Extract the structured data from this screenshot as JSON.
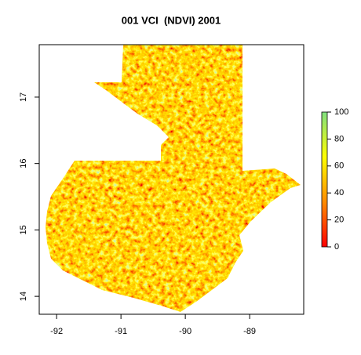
{
  "chart_data": {
    "type": "raster",
    "title": "001 VCI  (NDVI) 2001",
    "xlim": [
      -92.27,
      -88.16
    ],
    "xticks": [
      -92,
      -91,
      -90,
      -89
    ],
    "ylim": [
      13.73,
      17.79
    ],
    "yticks": [
      14,
      15,
      16,
      17
    ],
    "colorbar": {
      "lim": [
        0,
        100
      ],
      "ticks": [
        0,
        20,
        40,
        60,
        80,
        100
      ],
      "colors": [
        "#ff0000",
        "#ff8c00",
        "#ffff00",
        "#80e080"
      ]
    }
  }
}
